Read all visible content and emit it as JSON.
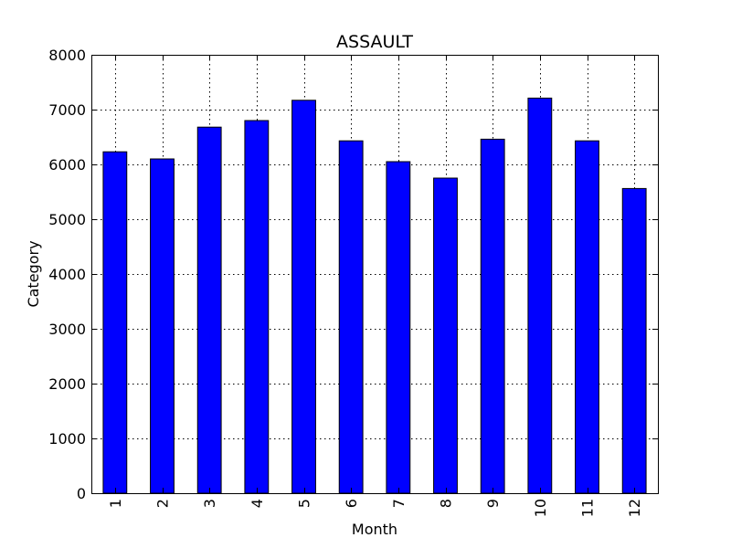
{
  "chart_data": {
    "type": "bar",
    "title": "ASSAULT",
    "xlabel": "Month",
    "ylabel": "Category",
    "categories": [
      "1",
      "2",
      "3",
      "4",
      "5",
      "6",
      "7",
      "8",
      "9",
      "10",
      "11",
      "12"
    ],
    "values": [
      6230,
      6100,
      6680,
      6800,
      7170,
      6430,
      6050,
      5750,
      6460,
      7210,
      6430,
      5560
    ],
    "ylim": [
      0,
      8000
    ],
    "yticks": [
      "0",
      "1000",
      "2000",
      "3000",
      "4000",
      "5000",
      "6000",
      "7000",
      "8000"
    ],
    "grid": true,
    "bar_color": "#0000ff"
  }
}
